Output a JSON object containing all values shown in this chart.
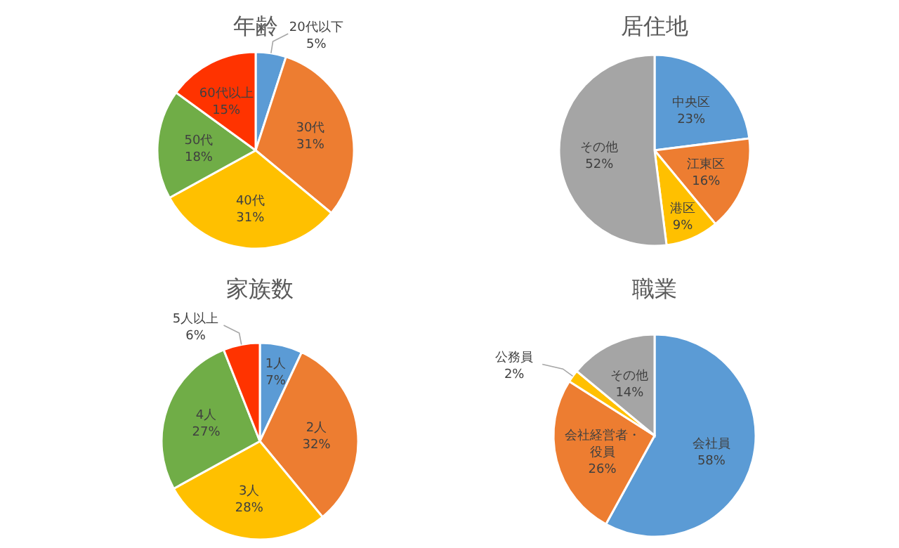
{
  "chart_data": [
    {
      "type": "pie",
      "title": "年齢",
      "categories": [
        "20代以下",
        "30代",
        "40代",
        "50代",
        "60代以上"
      ],
      "values": [
        5,
        31,
        31,
        18,
        15
      ],
      "value_labels": [
        "5%",
        "31%",
        "31%",
        "18%",
        "15%"
      ],
      "colors": [
        "#5b9bd5",
        "#ed7d31",
        "#ffc000",
        "#70ad47",
        "#ff3300"
      ],
      "legend": false
    },
    {
      "type": "pie",
      "title": "居住地",
      "categories": [
        "中央区",
        "江東区",
        "港区",
        "その他"
      ],
      "values": [
        23,
        16,
        9,
        52
      ],
      "value_labels": [
        "23%",
        "16%",
        "9%",
        "52%"
      ],
      "colors": [
        "#5b9bd5",
        "#ed7d31",
        "#ffc000",
        "#a5a5a5"
      ],
      "legend": false
    },
    {
      "type": "pie",
      "title": "家族数",
      "categories": [
        "1人",
        "2人",
        "3人",
        "4人",
        "5人以上"
      ],
      "values": [
        7,
        32,
        28,
        27,
        6
      ],
      "value_labels": [
        "7%",
        "32%",
        "28%",
        "27%",
        "6%"
      ],
      "colors": [
        "#5b9bd5",
        "#ed7d31",
        "#ffc000",
        "#70ad47",
        "#ff3300"
      ],
      "legend": false
    },
    {
      "type": "pie",
      "title": "職業",
      "categories": [
        "会社員",
        "会社経営者・役員",
        "公務員",
        "その他"
      ],
      "values": [
        58,
        26,
        2,
        14
      ],
      "value_labels": [
        "58%",
        "26%",
        "2%",
        "14%"
      ],
      "colors": [
        "#5b9bd5",
        "#ed7d31",
        "#ffc000",
        "#a5a5a5"
      ],
      "legend": false
    }
  ]
}
